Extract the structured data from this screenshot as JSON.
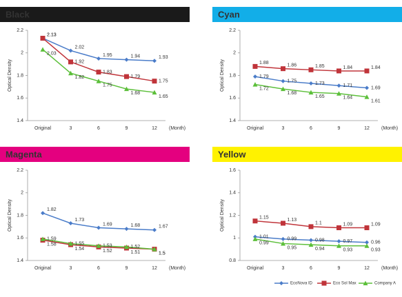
{
  "chart_data": [
    {
      "type": "line",
      "title": "Black",
      "header_color": "#1a1a1a",
      "title_color": "#ffffff",
      "y_label": "Optical Density",
      "x_label": "(Month)",
      "categories": [
        "Original",
        "3",
        "6",
        "9",
        "12"
      ],
      "ylim": [
        1.4,
        2.2
      ],
      "yticks": [
        1.4,
        1.6,
        1.8,
        2,
        2.2
      ],
      "grid": false,
      "series": [
        {
          "name": "EcoNova ID",
          "color": "#4a7cc9",
          "marker": "diamond",
          "values": [
            2.13,
            2.02,
            1.95,
            1.94,
            1.93
          ]
        },
        {
          "name": "Eco Sol Max",
          "color": "#c0343a",
          "marker": "square",
          "values": [
            2.13,
            1.92,
            1.83,
            1.79,
            1.75
          ]
        },
        {
          "name": "Company A",
          "color": "#5cbf3a",
          "marker": "triangle",
          "values": [
            2.03,
            1.82,
            1.75,
            1.68,
            1.65
          ]
        }
      ]
    },
    {
      "type": "line",
      "title": "Cyan",
      "header_color": "#12aee8",
      "title_color": "#111111",
      "y_label": "Optical Density",
      "x_label": "(Month)",
      "categories": [
        "Original",
        "3",
        "6",
        "9",
        "12"
      ],
      "ylim": [
        1.4,
        2.2
      ],
      "yticks": [
        1.4,
        1.6,
        1.8,
        2,
        2.2
      ],
      "grid": false,
      "series": [
        {
          "name": "EcoNova ID",
          "color": "#4a7cc9",
          "marker": "diamond",
          "values": [
            1.79,
            1.75,
            1.73,
            1.71,
            1.69
          ]
        },
        {
          "name": "Eco Sol Max",
          "color": "#c0343a",
          "marker": "square",
          "values": [
            1.88,
            1.86,
            1.85,
            1.84,
            1.84
          ]
        },
        {
          "name": "Company A",
          "color": "#5cbf3a",
          "marker": "triangle",
          "values": [
            1.72,
            1.68,
            1.65,
            1.64,
            1.61
          ]
        }
      ]
    },
    {
      "type": "line",
      "title": "Magenta",
      "header_color": "#e4007f",
      "title_color": "#ffffff",
      "y_label": "Optical Density",
      "x_label": "(Month)",
      "categories": [
        "Original",
        "3",
        "6",
        "9",
        "12"
      ],
      "ylim": [
        1.4,
        2.2
      ],
      "yticks": [
        1.4,
        1.6,
        1.8,
        2,
        2.2
      ],
      "grid": false,
      "series": [
        {
          "name": "EcoNova ID",
          "color": "#4a7cc9",
          "marker": "diamond",
          "values": [
            1.82,
            1.73,
            1.69,
            1.68,
            1.67
          ]
        },
        {
          "name": "Eco Sol Max",
          "color": "#c0343a",
          "marker": "square",
          "values": [
            1.58,
            1.54,
            1.52,
            1.51,
            1.5
          ]
        },
        {
          "name": "Company A",
          "color": "#5cbf3a",
          "marker": "triangle",
          "values": [
            1.59,
            1.55,
            1.53,
            1.52,
            1.5
          ]
        }
      ]
    },
    {
      "type": "line",
      "title": "Yellow",
      "header_color": "#fff200",
      "title_color": "#111111",
      "y_label": "Optical Density",
      "x_label": "(Month)",
      "categories": [
        "Original",
        "3",
        "6",
        "9",
        "12"
      ],
      "ylim": [
        0.8,
        1.6
      ],
      "yticks": [
        0.8,
        1,
        1.2,
        1.4,
        1.6
      ],
      "grid": false,
      "series": [
        {
          "name": "EcoNova ID",
          "color": "#4a7cc9",
          "marker": "diamond",
          "values": [
            1.01,
            0.99,
            0.98,
            0.97,
            0.96
          ]
        },
        {
          "name": "Eco Sol Max",
          "color": "#c0343a",
          "marker": "square",
          "values": [
            1.15,
            1.13,
            1.1,
            1.09,
            1.09
          ]
        },
        {
          "name": "Company A",
          "color": "#5cbf3a",
          "marker": "triangle",
          "values": [
            0.99,
            0.95,
            0.94,
            0.93,
            0.93
          ]
        }
      ]
    }
  ]
}
